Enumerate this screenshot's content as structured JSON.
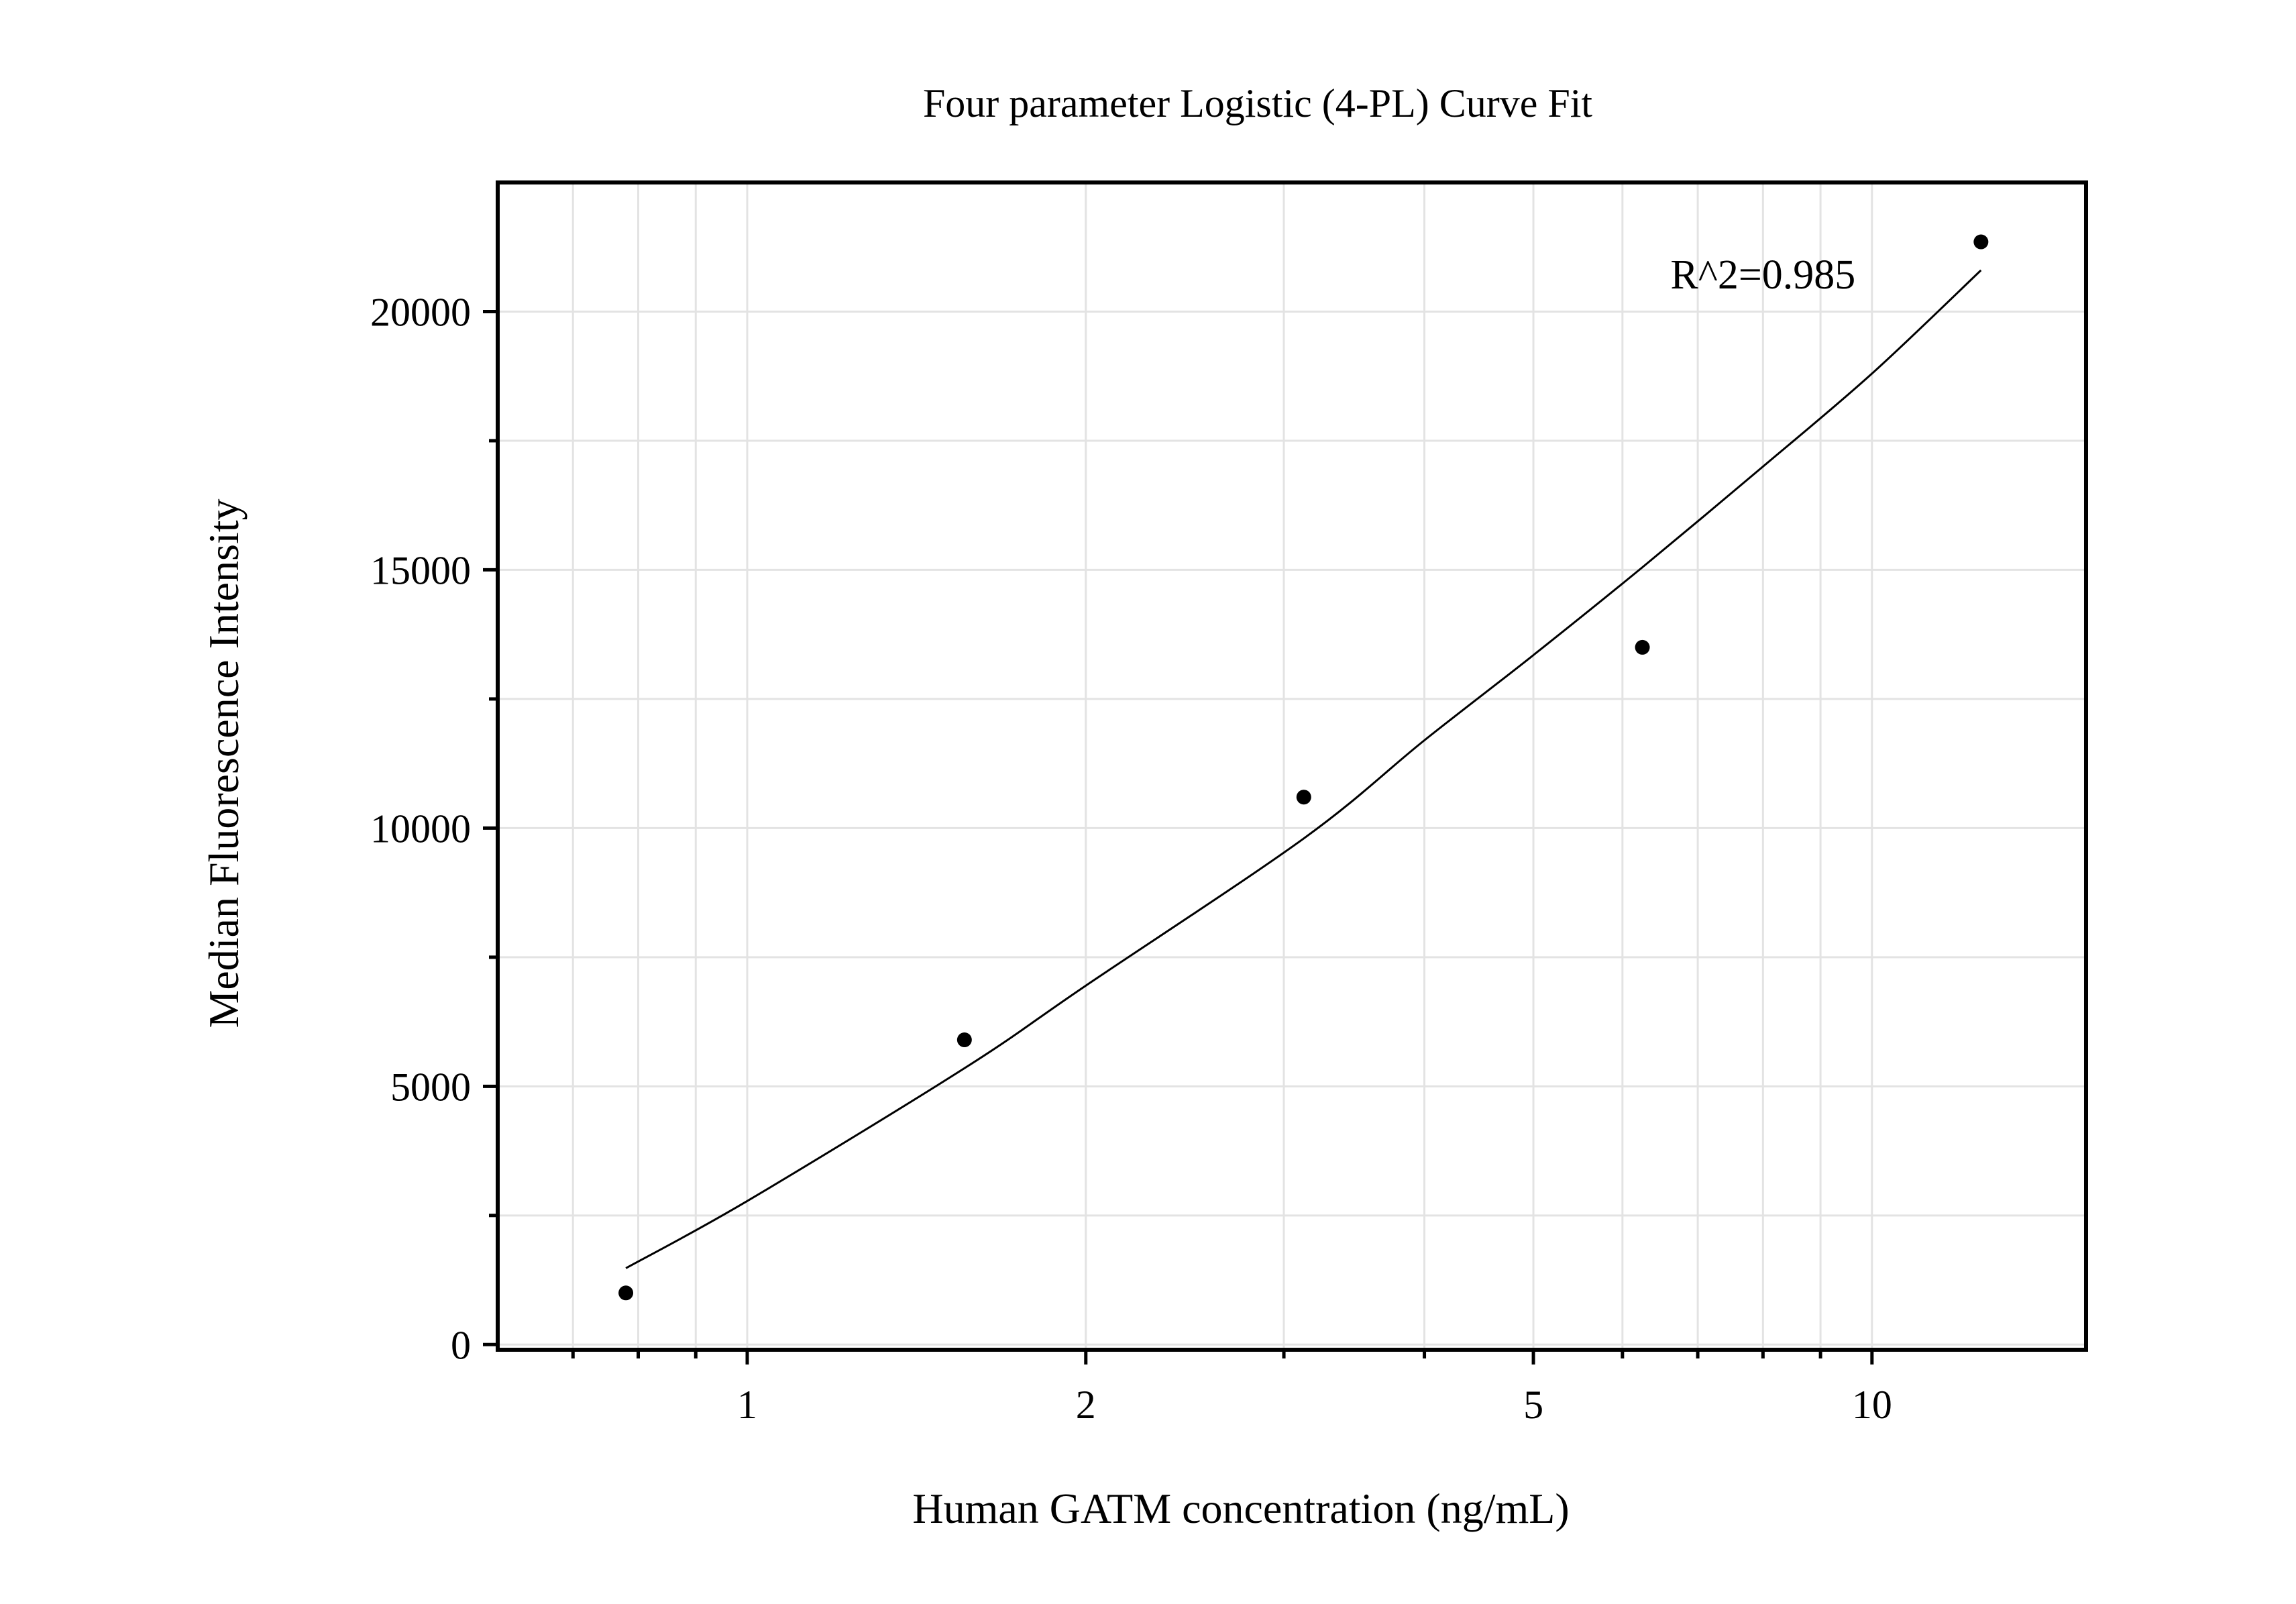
{
  "chart_data": {
    "type": "scatter",
    "title": "Four parameter Logistic (4-PL) Curve Fit",
    "xlabel": "Human GATM concentration (ng/mL)",
    "ylabel": "Median Fluorescence Intensity",
    "x_scale": "log",
    "xlim": [
      0.6,
      15.5
    ],
    "ylim": [
      -100,
      22500
    ],
    "x_ticks": [
      1,
      2,
      5,
      10
    ],
    "x_tick_labels": [
      "1",
      "2",
      "5",
      "10"
    ],
    "x_minor_ticks": [
      0.7,
      0.8,
      0.9,
      3,
      4,
      6,
      7,
      8,
      9
    ],
    "y_ticks": [
      0,
      5000,
      10000,
      15000,
      20000
    ],
    "y_tick_labels": [
      "0",
      "5000",
      "10000",
      "15000",
      "20000"
    ],
    "y_minor_ticks": [
      2500,
      7500,
      12500,
      17500
    ],
    "grid": true,
    "series": [
      {
        "kind": "points",
        "x": [
          0.78,
          1.56,
          3.125,
          6.25,
          12.5
        ],
        "y": [
          1000,
          5900,
          10600,
          13500,
          21350
        ]
      },
      {
        "kind": "fit",
        "x": [
          0.78,
          1.0,
          1.56,
          2.0,
          3.125,
          4.0,
          5.0,
          6.25,
          8.0,
          10.0,
          12.5
        ],
        "y": [
          1480,
          2780,
          5350,
          6950,
          9800,
          11700,
          13350,
          15050,
          17000,
          18800,
          20800
        ]
      }
    ],
    "annotations": [
      {
        "text": "R^2=0.985",
        "x": 8.0,
        "y": 20450
      }
    ]
  }
}
